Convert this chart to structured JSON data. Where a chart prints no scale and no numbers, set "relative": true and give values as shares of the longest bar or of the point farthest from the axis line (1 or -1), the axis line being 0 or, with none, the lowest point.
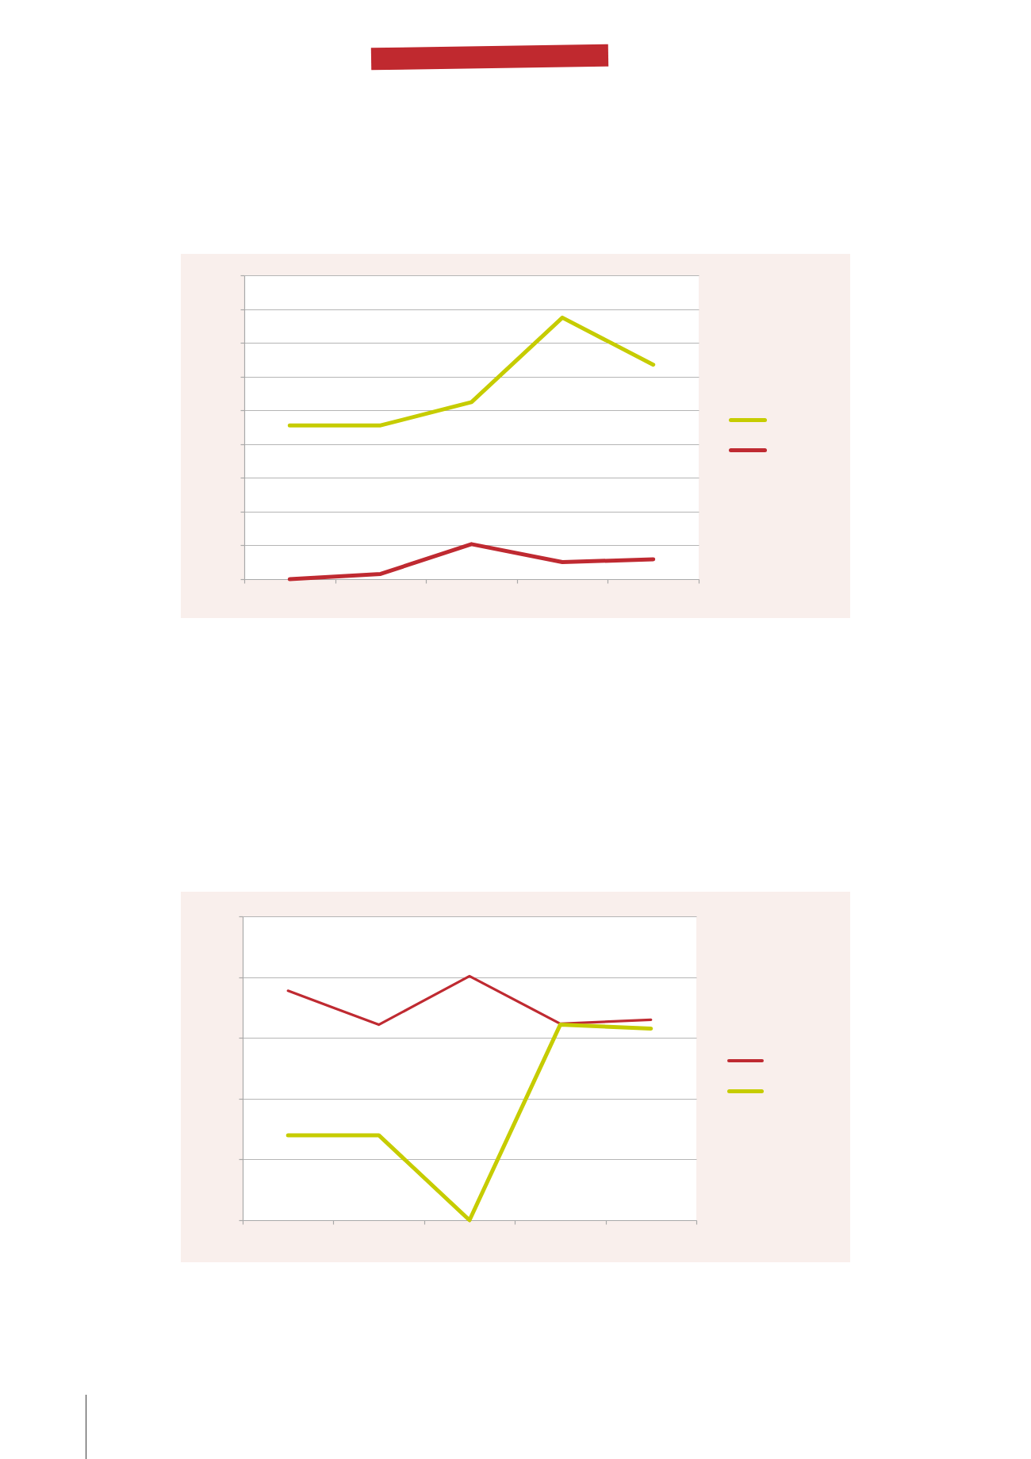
{
  "chart_data": [
    {
      "type": "line",
      "categories": [
        null,
        null,
        null,
        null,
        null
      ],
      "relative": true,
      "grid": "y",
      "series": [
        {
          "color": "#c6cc00",
          "values": [
            0.588,
            0.588,
            0.677,
            1,
            0.82
          ]
        },
        {
          "color": "#bf2a31",
          "values": [
            0,
            0.02,
            0.134,
            0.065,
            0.076
          ]
        }
      ]
    },
    {
      "type": "line",
      "categories": [
        null,
        null,
        null,
        null,
        null
      ],
      "relative": true,
      "grid": "y",
      "series": [
        {
          "color": "#bf2a31",
          "values": [
            0.94,
            0.801,
            1,
            0.805,
            0.821
          ]
        },
        {
          "color": "#c6cc00",
          "values": [
            0.348,
            0.348,
            0,
            0.801,
            0.785
          ]
        }
      ]
    }
  ]
}
